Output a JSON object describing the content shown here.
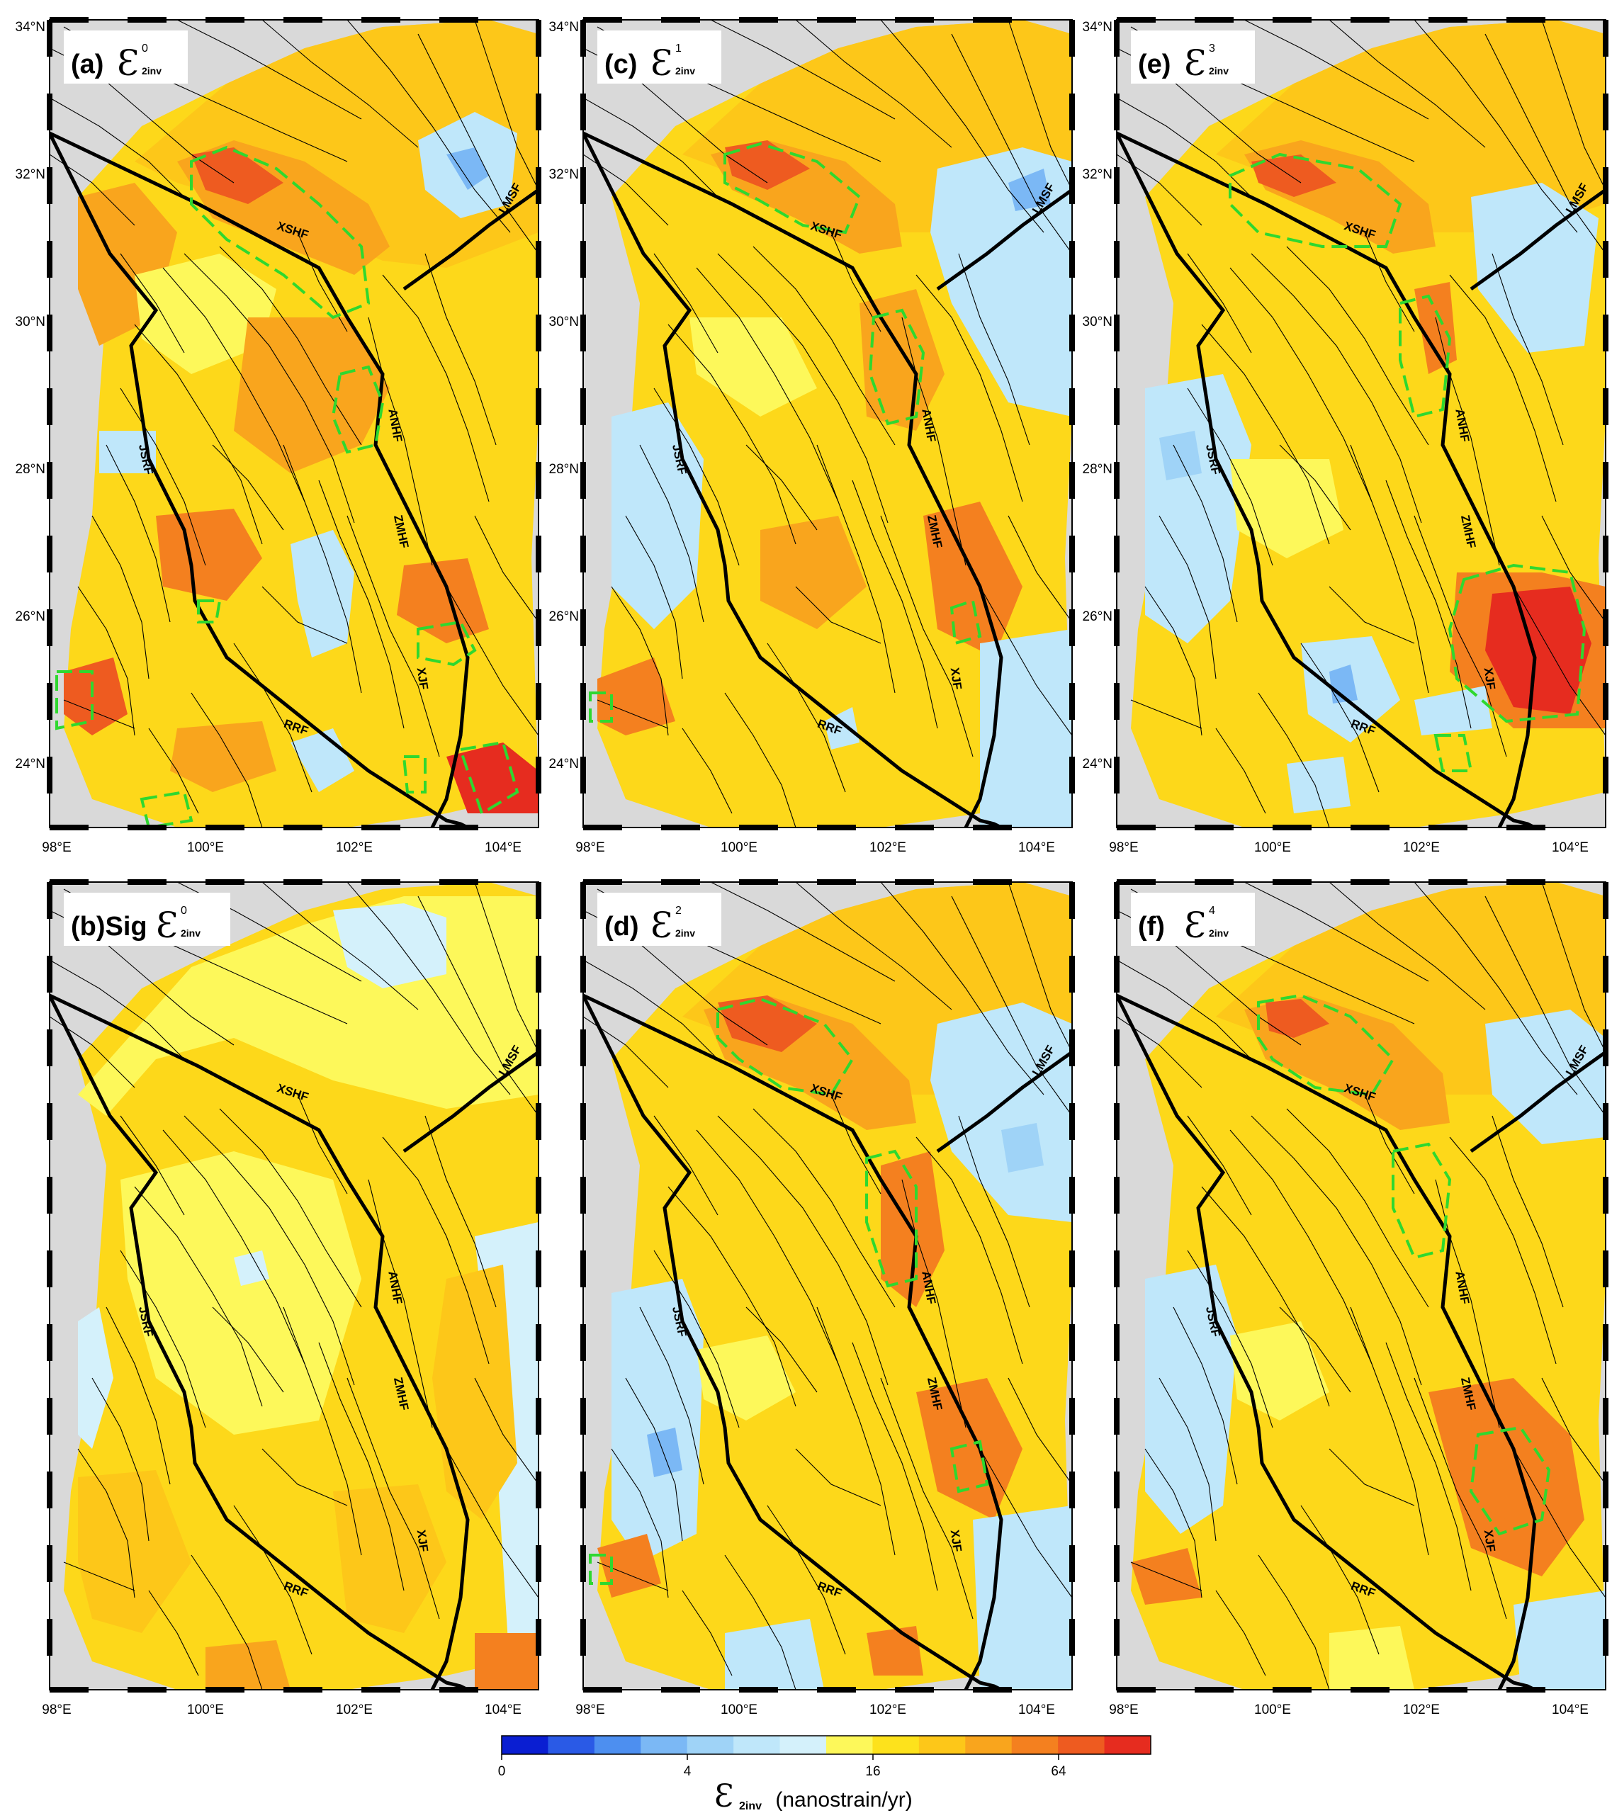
{
  "panels": [
    {
      "id": "a",
      "label_prefix": "(a)",
      "symbol": "Ɛ",
      "superscript": "0",
      "subscript": "2inv"
    },
    {
      "id": "c",
      "label_prefix": "(c)",
      "symbol": "Ɛ",
      "superscript": "1",
      "subscript": "2inv"
    },
    {
      "id": "e",
      "label_prefix": "(e)",
      "symbol": "Ɛ",
      "superscript": "3",
      "subscript": "2inv"
    },
    {
      "id": "b",
      "label_prefix": "(b)Sig",
      "symbol": "Ɛ",
      "superscript": "0",
      "subscript": "2inv"
    },
    {
      "id": "d",
      "label_prefix": "(d)",
      "symbol": "Ɛ",
      "superscript": "2",
      "subscript": "2inv"
    },
    {
      "id": "f",
      "label_prefix": "(f)",
      "symbol": "Ɛ",
      "superscript": "4",
      "subscript": "2inv"
    }
  ],
  "lon_ticks": [
    "98°E",
    "100°E",
    "102°E",
    "104°E"
  ],
  "lat_ticks": [
    "34°N",
    "32°N",
    "30°N",
    "28°N",
    "26°N",
    "24°N"
  ],
  "faults": {
    "xshf": "XSHF",
    "lmsf": "LMSF",
    "anhf": "ANHF",
    "jsrf": "JSRF",
    "zmhf": "ZMHF",
    "xjf": "XJF",
    "rrf": "RRF"
  },
  "colorbar": {
    "tick_labels": [
      "0",
      "4",
      "16",
      "64"
    ],
    "title_symbol": "Ɛ",
    "title_subscript": "2inv",
    "title_units": " (nanostrain/yr)",
    "colors": [
      "#0a1ed2",
      "#2a5ae6",
      "#4d8ff0",
      "#7bb8f5",
      "#9fd3f7",
      "#bfe7fa",
      "#d4f1fb",
      "#fdf85a",
      "#fde21c",
      "#fdc719",
      "#f9a51d",
      "#f4801f",
      "#ee5b20",
      "#e62c1f"
    ]
  },
  "colors": {
    "land_gray": "#d9d9d9",
    "dashed_outline": "#2fd82f",
    "main_fault": "#000000"
  }
}
